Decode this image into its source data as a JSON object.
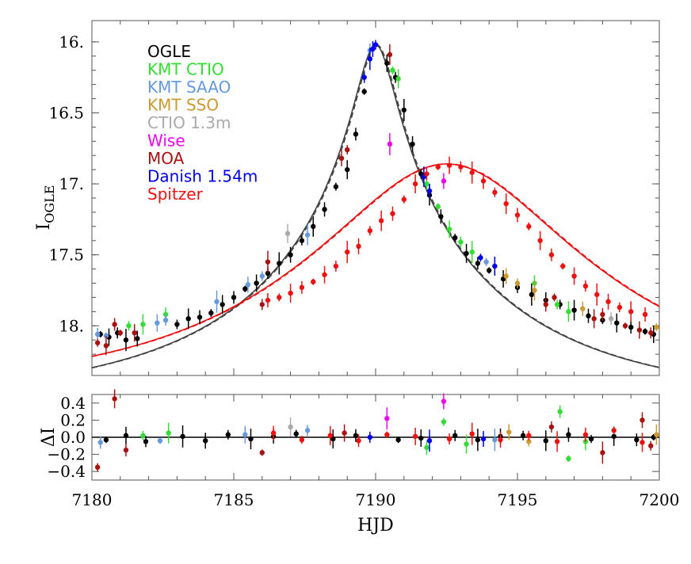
{
  "chart_data": [
    {
      "type": "scatter",
      "panel": "main",
      "xlabel": "HJD",
      "ylabel_main": "I",
      "ylabel_sub": "OGLE",
      "xlim": [
        7180,
        7200
      ],
      "ylim": [
        18.35,
        15.85
      ],
      "y_inverted": true,
      "yticks": [
        16.0,
        16.5,
        17.0,
        17.5,
        18.0
      ],
      "ytick_labels": [
        "16.",
        "16.5",
        "17.",
        "17.5",
        "18."
      ],
      "legend_position": "top-left",
      "legend": [
        {
          "label": "OGLE",
          "color": "#000000"
        },
        {
          "label": "KMT CTIO",
          "color": "#33dd33"
        },
        {
          "label": "KMT SAAO",
          "color": "#6699dd"
        },
        {
          "label": "KMT SSO",
          "color": "#cc9933"
        },
        {
          "label": "CTIO 1.3m",
          "color": "#aaaaaa"
        },
        {
          "label": "Wise",
          "color": "#ee00ee"
        },
        {
          "label": "MOA",
          "color": "#aa1111"
        },
        {
          "label": "Danish 1.54m",
          "color": "#0000ee"
        },
        {
          "label": "Spitzer",
          "color": "#ee1111"
        }
      ],
      "models": [
        {
          "name": "ground",
          "color": "#444444",
          "peak_x": 7190.0,
          "peak_mag": 16.02,
          "baseline_mag": 18.52,
          "tE": 9.0,
          "u0": 0.07
        },
        {
          "name": "spitzer",
          "color": "#ee1111",
          "peak_x": 7192.5,
          "peak_mag": 16.86,
          "baseline_mag": 18.46,
          "tE": 9.0,
          "u0": 0.45
        }
      ],
      "series": [
        {
          "name": "OGLE",
          "color": "#000000",
          "x": [
            7180.3,
            7180.6,
            7180.9,
            7181.2,
            7181.6,
            7183.0,
            7183.4,
            7183.8,
            7184.2,
            7184.6,
            7185.0,
            7185.4,
            7185.8,
            7186.2,
            7186.6,
            7187.0,
            7187.4,
            7187.8,
            7188.2,
            7188.6,
            7189.0,
            7189.3,
            7189.6,
            7190.4,
            7190.7,
            7191.0,
            7191.3,
            7191.6,
            7191.9,
            7192.3,
            7192.8,
            7193.2,
            7193.6,
            7194.0,
            7194.5,
            7195.0,
            7195.5,
            7196.0,
            7196.5,
            7197.0,
            7197.5,
            7198.0,
            7198.5,
            7199.0,
            7199.5,
            7199.8
          ],
          "y": [
            18.06,
            18.08,
            18.05,
            18.1,
            18.09,
            17.99,
            17.95,
            17.94,
            17.91,
            17.85,
            17.8,
            17.74,
            17.7,
            17.63,
            17.56,
            17.5,
            17.4,
            17.3,
            17.18,
            17.02,
            16.9,
            16.65,
            16.35,
            16.15,
            16.25,
            16.48,
            16.72,
            16.93,
            17.08,
            17.23,
            17.38,
            17.49,
            17.56,
            17.61,
            17.67,
            17.73,
            17.78,
            17.82,
            17.85,
            17.89,
            17.93,
            17.96,
            17.98,
            18.01,
            18.04,
            18.06
          ]
        },
        {
          "name": "KMT CTIO",
          "color": "#33dd33",
          "x": [
            7181.3,
            7181.8,
            7182.6,
            7190.6,
            7190.8,
            7191.8,
            7192.2,
            7192.6,
            7193.0,
            7193.4,
            7195.6,
            7196.4,
            7196.8
          ],
          "y": [
            18.0,
            17.99,
            17.92,
            16.2,
            16.26,
            17.0,
            17.16,
            17.32,
            17.41,
            17.48,
            17.7,
            17.85,
            17.9
          ]
        },
        {
          "name": "KMT SAAO",
          "color": "#6699dd",
          "x": [
            7180.2,
            7180.5,
            7182.3,
            7182.6,
            7184.4,
            7185.5,
            7186.0,
            7187.6,
            7189.8,
            7193.9,
            7194.2
          ],
          "y": [
            18.06,
            18.07,
            17.98,
            17.96,
            17.83,
            17.71,
            17.65,
            17.36,
            16.06,
            17.55,
            17.58
          ]
        },
        {
          "name": "KMT SSO",
          "color": "#cc9933",
          "x": [
            7194.6,
            7195.0,
            7195.6,
            7197.3,
            7199.9
          ],
          "y": [
            17.65,
            17.7,
            17.75,
            17.88,
            18.01
          ]
        },
        {
          "name": "CTIO 1.3m",
          "color": "#aaaaaa",
          "x": [
            7186.9,
            7198.3
          ],
          "y": [
            17.35,
            17.95
          ]
        },
        {
          "name": "Wise",
          "color": "#ee00ee",
          "x": [
            7190.5,
            7192.4
          ],
          "y": [
            16.72,
            16.98
          ]
        },
        {
          "name": "MOA",
          "color": "#aa1111",
          "x": [
            7180.2,
            7180.5,
            7180.8,
            7181.0,
            7181.5,
            7186.0,
            7186.2,
            7188.8,
            7189.0,
            7190.5,
            7196.0,
            7196.3,
            7197.7,
            7198.0,
            7198.8,
            7199.3,
            7199.7
          ],
          "y": [
            18.12,
            18.14,
            17.99,
            18.05,
            18.05,
            17.85,
            17.55,
            16.82,
            16.76,
            16.09,
            17.85,
            17.8,
            17.95,
            17.92,
            18.0,
            18.03,
            18.05
          ]
        },
        {
          "name": "Danish 1.54m",
          "color": "#0000ee",
          "x": [
            7189.6,
            7189.8,
            7189.9,
            7190.0,
            7191.7,
            7191.9,
            7193.7,
            7194.2
          ],
          "y": [
            16.25,
            16.12,
            16.05,
            16.02,
            16.95,
            17.05,
            17.52,
            17.58
          ]
        },
        {
          "name": "Spitzer",
          "color": "#ee1111",
          "x": [
            7186.2,
            7186.6,
            7187.0,
            7187.4,
            7187.8,
            7188.2,
            7188.6,
            7189.0,
            7189.4,
            7189.8,
            7190.2,
            7190.6,
            7191.0,
            7191.4,
            7191.8,
            7192.2,
            7192.6,
            7193.0,
            7193.4,
            7193.8,
            7194.2,
            7194.6,
            7195.0,
            7195.4,
            7195.8,
            7196.2,
            7196.6,
            7197.0,
            7197.4,
            7197.8,
            7198.2,
            7198.6,
            7199.0,
            7199.5
          ],
          "y": [
            17.82,
            17.8,
            17.77,
            17.73,
            17.69,
            17.64,
            17.58,
            17.48,
            17.44,
            17.33,
            17.26,
            17.21,
            17.11,
            17.0,
            16.93,
            16.88,
            16.87,
            16.88,
            16.92,
            16.98,
            17.06,
            17.14,
            17.22,
            17.3,
            17.4,
            17.5,
            17.58,
            17.65,
            17.72,
            17.78,
            17.83,
            17.87,
            17.9,
            17.92
          ]
        }
      ]
    },
    {
      "type": "scatter",
      "panel": "residuals",
      "ylabel": "ΔI",
      "xlim": [
        7180,
        7200
      ],
      "ylim": [
        -0.5,
        0.5
      ],
      "xticks": [
        7180,
        7185,
        7190,
        7195,
        7200
      ],
      "xtick_labels": [
        "7180",
        "7185",
        "7190",
        "7195",
        "7200"
      ],
      "yticks": [
        0.4,
        0.2,
        0.0,
        -0.2,
        -0.4
      ],
      "ytick_labels": [
        "0.4",
        "0.2",
        "0.0",
        "−0.2",
        "−0.4"
      ],
      "zero_line": true,
      "series": [
        {
          "name": "OGLE",
          "color": "#000000",
          "x": [
            7180.5,
            7181.2,
            7181.9,
            7183.2,
            7184.0,
            7184.8,
            7185.6,
            7186.4,
            7187.2,
            7188.5,
            7189.3,
            7190.8,
            7191.6,
            7192.8,
            7193.6,
            7194.4,
            7195.2,
            7196.0,
            7196.8,
            7197.6,
            7198.4,
            7199.2,
            7199.8
          ],
          "y": [
            -0.03,
            0.02,
            -0.05,
            0.01,
            -0.04,
            0.03,
            -0.02,
            0.01,
            0.04,
            -0.02,
            0.02,
            -0.03,
            -0.01,
            0.02,
            -0.03,
            0.01,
            0.02,
            -0.04,
            0.03,
            -0.02,
            0.01,
            -0.03,
            0.0
          ]
        },
        {
          "name": "KMT CTIO",
          "color": "#33dd33",
          "x": [
            7181.8,
            7182.7,
            7191.8,
            7192.4,
            7193.2,
            7196.5,
            7196.8,
            7197.4
          ],
          "y": [
            0.02,
            0.05,
            -0.12,
            0.18,
            -0.08,
            0.3,
            -0.25,
            -0.05
          ]
        },
        {
          "name": "KMT SAAO",
          "color": "#6699dd",
          "x": [
            7180.3,
            7182.4,
            7185.4,
            7187.6,
            7194.2
          ],
          "y": [
            -0.06,
            -0.04,
            0.03,
            0.08,
            -0.03
          ]
        },
        {
          "name": "KMT SSO",
          "color": "#cc9933",
          "x": [
            7194.7,
            7195.4,
            7199.9
          ],
          "y": [
            0.06,
            -0.05,
            0.03
          ]
        },
        {
          "name": "CTIO 1.3m",
          "color": "#aaaaaa",
          "x": [
            7187.0
          ],
          "y": [
            0.12
          ]
        },
        {
          "name": "Wise",
          "color": "#ee00ee",
          "x": [
            7190.4,
            7192.4
          ],
          "y": [
            0.22,
            0.42
          ]
        },
        {
          "name": "MOA",
          "color": "#aa1111",
          "x": [
            7180.2,
            7180.8,
            7181.2,
            7186.0,
            7188.9,
            7196.2,
            7198.0,
            7199.4,
            7199.7
          ],
          "y": [
            -0.35,
            0.45,
            -0.15,
            -0.18,
            0.05,
            0.12,
            -0.18,
            0.2,
            -0.1
          ]
        },
        {
          "name": "Danish 1.54m",
          "color": "#0000ee",
          "x": [
            7189.8,
            7191.9,
            7193.8
          ],
          "y": [
            0.0,
            -0.04,
            -0.02
          ]
        },
        {
          "name": "Spitzer",
          "color": "#ee1111",
          "x": [
            7186.4,
            7187.4,
            7188.4,
            7189.4,
            7190.4,
            7191.4,
            7192.6,
            7193.4,
            7194.4,
            7195.4,
            7196.4,
            7197.4,
            7198.4,
            7199.4
          ],
          "y": [
            0.05,
            -0.03,
            0.02,
            -0.04,
            0.03,
            0.01,
            -0.02,
            0.04,
            -0.03,
            0.02,
            -0.05,
            0.03,
            0.08,
            -0.06
          ]
        }
      ]
    }
  ]
}
